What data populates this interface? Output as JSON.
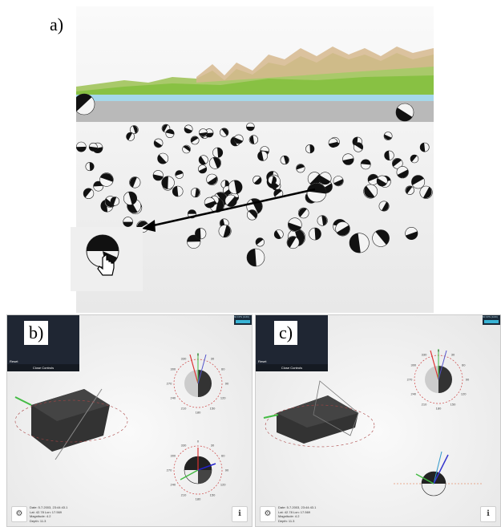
{
  "labels": {
    "a": "a)",
    "b": "b)",
    "c": "c)"
  },
  "menu": {
    "items": [
      "Reset"
    ],
    "close_label": "Close Controls"
  },
  "fps": {
    "label": "60 FPS (0-60)"
  },
  "event_info": {
    "date": "Date: 5.7.2003, 23:44:43.1",
    "latlon": "Lat: 42.78 Lon: 17.569",
    "magnitude": "Magnitude: 4.2",
    "depth": "Depth: 11.3"
  },
  "stereonet_ticks": [
    "0",
    "30",
    "60",
    "90",
    "120",
    "150",
    "180",
    "210",
    "240",
    "270",
    "300",
    "330"
  ],
  "icons": {
    "settings": "gears-icon",
    "info": "info-icon"
  },
  "colors": {
    "terrain_top": "#d0b48c",
    "terrain_green": "#8cc63f",
    "sea": "#a5d8ea",
    "fps_bar": "#39b4d6"
  }
}
